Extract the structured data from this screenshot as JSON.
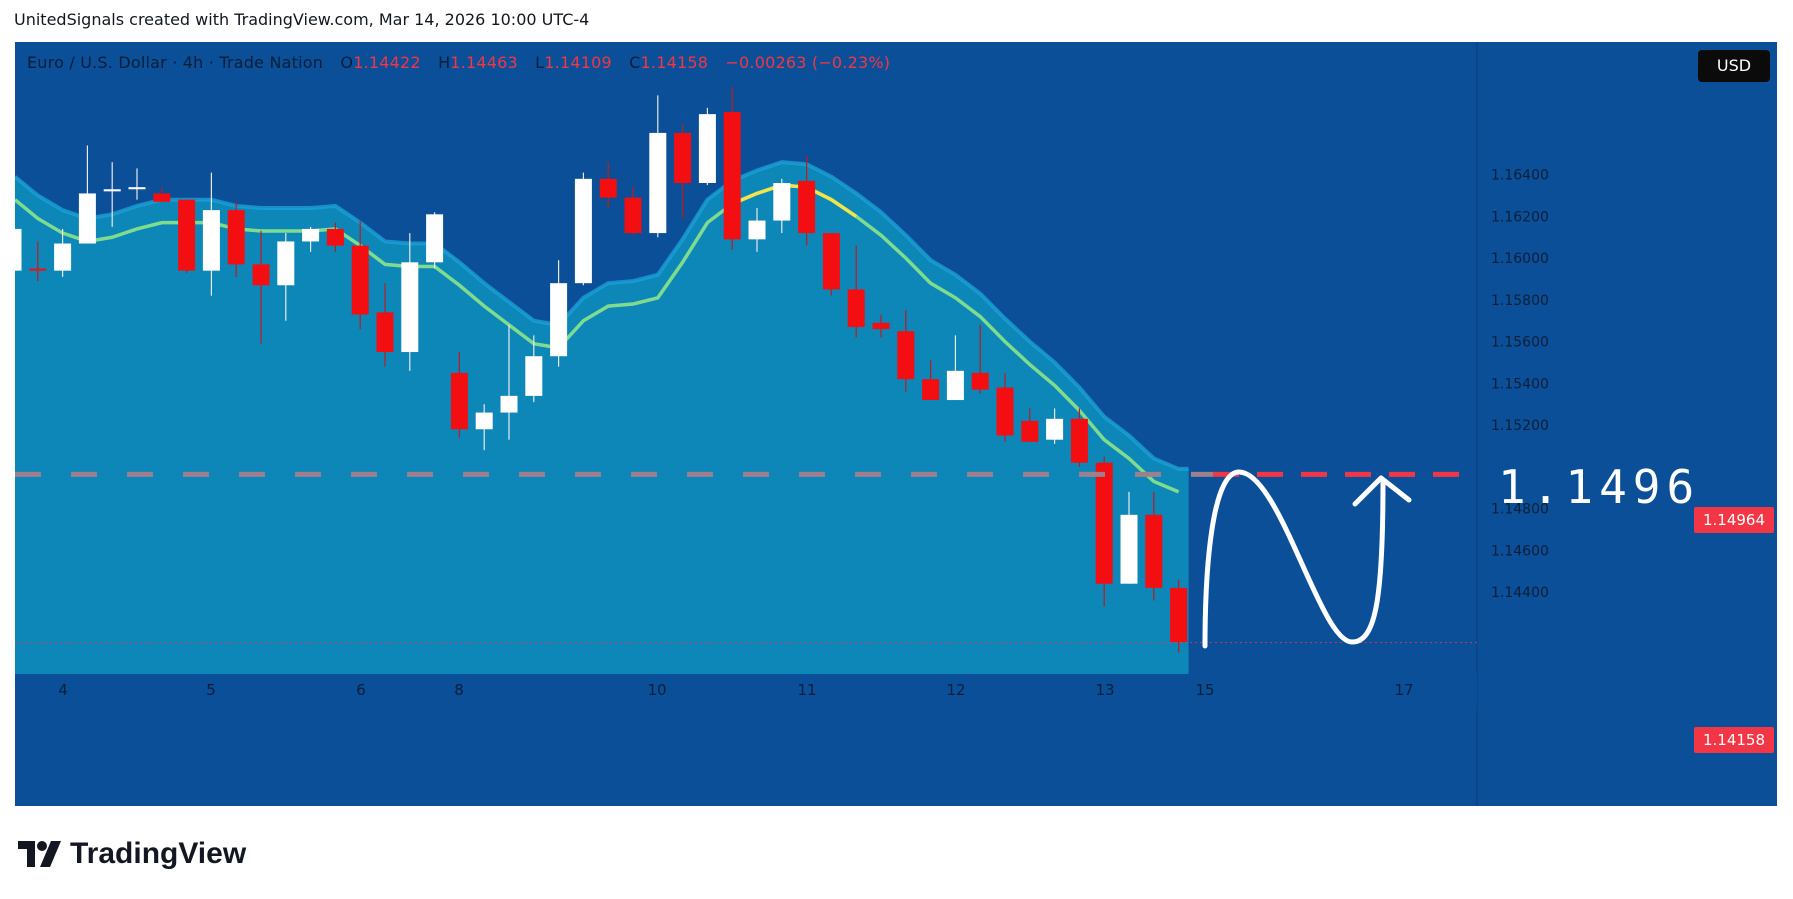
{
  "header": {
    "text": "UnitedSignals created with TradingView.com, Mar 14, 2026 10:00 UTC-4"
  },
  "legend": {
    "symbol": "Euro / U.S. Dollar · 4h · Trade Nation",
    "o_label": "O",
    "o_value": "1.14422",
    "h_label": "H",
    "h_value": "1.14463",
    "l_label": "L",
    "l_value": "1.14109",
    "c_label": "C",
    "c_value": "1.14158",
    "change": "−0.00263 (−0.23%)"
  },
  "currency_button": "USD",
  "price_tags": {
    "target": "1.14964",
    "last": "1.14158"
  },
  "annotation": {
    "target_text": "1.1496"
  },
  "footer": {
    "brand": "TradingView"
  },
  "colors": {
    "background": "#0a4f97",
    "channel_fill": "#0d86b8",
    "channel_edge": "#1aa0d6",
    "ma_line": "#7fdc8f",
    "ma_highlight": "#f2e44b",
    "up_candle": "#ffffff",
    "down_candle": "#f30e12",
    "target_line": "#f23645"
  },
  "chart_data": {
    "type": "candlestick",
    "symbol": "Euro / U.S. Dollar",
    "interval": "4h",
    "y_axis": {
      "range": [
        1.1406,
        1.1682
      ],
      "ticks": [
        "1.16400",
        "1.16200",
        "1.16000",
        "1.15800",
        "1.15600",
        "1.15400",
        "1.15200",
        "1.14800",
        "1.14600",
        "1.14400"
      ]
    },
    "x_axis": {
      "tick_labels": [
        "4",
        "5",
        "6",
        "8",
        "10",
        "11",
        "12",
        "13",
        "15",
        "17"
      ]
    },
    "candles": [
      {
        "o": 1.1594,
        "h": 1.1614,
        "l": 1.1589,
        "c": 1.1614
      },
      {
        "o": 1.1595,
        "h": 1.1608,
        "l": 1.1589,
        "c": 1.1594
      },
      {
        "o": 1.1594,
        "h": 1.1614,
        "l": 1.1591,
        "c": 1.1607
      },
      {
        "o": 1.1607,
        "h": 1.1654,
        "l": 1.1607,
        "c": 1.1631
      },
      {
        "o": 1.1632,
        "h": 1.1646,
        "l": 1.1615,
        "c": 1.1633
      },
      {
        "o": 1.1633,
        "h": 1.1643,
        "l": 1.1628,
        "c": 1.1634
      },
      {
        "o": 1.1631,
        "h": 1.1634,
        "l": 1.1628,
        "c": 1.1627
      },
      {
        "o": 1.1628,
        "h": 1.1628,
        "l": 1.1593,
        "c": 1.1594
      },
      {
        "o": 1.1594,
        "h": 1.1641,
        "l": 1.1582,
        "c": 1.1623
      },
      {
        "o": 1.1623,
        "h": 1.1627,
        "l": 1.1591,
        "c": 1.1597
      },
      {
        "o": 1.1597,
        "h": 1.1613,
        "l": 1.1559,
        "c": 1.1587
      },
      {
        "o": 1.1587,
        "h": 1.1612,
        "l": 1.157,
        "c": 1.1608
      },
      {
        "o": 1.1608,
        "h": 1.1615,
        "l": 1.1603,
        "c": 1.1614
      },
      {
        "o": 1.1614,
        "h": 1.1617,
        "l": 1.1603,
        "c": 1.1606
      },
      {
        "o": 1.1606,
        "h": 1.1618,
        "l": 1.1566,
        "c": 1.1573
      },
      {
        "o": 1.1574,
        "h": 1.1588,
        "l": 1.1548,
        "c": 1.1555
      },
      {
        "o": 1.1555,
        "h": 1.1612,
        "l": 1.1546,
        "c": 1.1598
      },
      {
        "o": 1.1598,
        "h": 1.1622,
        "l": 1.1595,
        "c": 1.1621
      },
      {
        "o": 1.1545,
        "h": 1.1555,
        "l": 1.1514,
        "c": 1.1518
      },
      {
        "o": 1.1518,
        "h": 1.153,
        "l": 1.1508,
        "c": 1.1526
      },
      {
        "o": 1.1526,
        "h": 1.1568,
        "l": 1.1513,
        "c": 1.1534
      },
      {
        "o": 1.1534,
        "h": 1.1563,
        "l": 1.1531,
        "c": 1.1553
      },
      {
        "o": 1.1553,
        "h": 1.1599,
        "l": 1.1548,
        "c": 1.1588
      },
      {
        "o": 1.1588,
        "h": 1.1641,
        "l": 1.1587,
        "c": 1.1638
      },
      {
        "o": 1.1638,
        "h": 1.1646,
        "l": 1.1624,
        "c": 1.1629
      },
      {
        "o": 1.1629,
        "h": 1.1634,
        "l": 1.1611,
        "c": 1.1612
      },
      {
        "o": 1.1612,
        "h": 1.1678,
        "l": 1.161,
        "c": 1.166
      },
      {
        "o": 1.166,
        "h": 1.1664,
        "l": 1.1619,
        "c": 1.1636
      },
      {
        "o": 1.1636,
        "h": 1.1672,
        "l": 1.1635,
        "c": 1.1669
      },
      {
        "o": 1.167,
        "h": 1.1682,
        "l": 1.1604,
        "c": 1.1609
      },
      {
        "o": 1.1609,
        "h": 1.1624,
        "l": 1.1603,
        "c": 1.1618
      },
      {
        "o": 1.1618,
        "h": 1.1638,
        "l": 1.1612,
        "c": 1.1636
      },
      {
        "o": 1.1637,
        "h": 1.1649,
        "l": 1.1606,
        "c": 1.1612
      },
      {
        "o": 1.1612,
        "h": 1.1612,
        "l": 1.1582,
        "c": 1.1585
      },
      {
        "o": 1.1585,
        "h": 1.1606,
        "l": 1.1562,
        "c": 1.1567
      },
      {
        "o": 1.1569,
        "h": 1.1573,
        "l": 1.1562,
        "c": 1.1566
      },
      {
        "o": 1.1565,
        "h": 1.1575,
        "l": 1.1536,
        "c": 1.1542
      },
      {
        "o": 1.1542,
        "h": 1.1551,
        "l": 1.1532,
        "c": 1.1532
      },
      {
        "o": 1.1532,
        "h": 1.1563,
        "l": 1.1532,
        "c": 1.1546
      },
      {
        "o": 1.1545,
        "h": 1.1568,
        "l": 1.1535,
        "c": 1.1537
      },
      {
        "o": 1.1538,
        "h": 1.1545,
        "l": 1.1512,
        "c": 1.1515
      },
      {
        "o": 1.1522,
        "h": 1.1528,
        "l": 1.1512,
        "c": 1.1512
      },
      {
        "o": 1.1513,
        "h": 1.1528,
        "l": 1.1511,
        "c": 1.1523
      },
      {
        "o": 1.1523,
        "h": 1.1528,
        "l": 1.15,
        "c": 1.1502
      },
      {
        "o": 1.1502,
        "h": 1.1505,
        "l": 1.1433,
        "c": 1.1444
      },
      {
        "o": 1.1444,
        "h": 1.1488,
        "l": 1.1444,
        "c": 1.1477
      },
      {
        "o": 1.1477,
        "h": 1.1488,
        "l": 1.1436,
        "c": 1.1442
      },
      {
        "o": 1.1442,
        "h": 1.1446,
        "l": 1.1411,
        "c": 1.1416
      }
    ],
    "moving_average": [
      1.1628,
      1.1619,
      1.1612,
      1.1608,
      1.161,
      1.1614,
      1.1617,
      1.1617,
      1.1617,
      1.1614,
      1.1613,
      1.1613,
      1.1613,
      1.1614,
      1.1606,
      1.1597,
      1.1596,
      1.1596,
      1.1587,
      1.1577,
      1.1568,
      1.1559,
      1.1557,
      1.157,
      1.1577,
      1.1578,
      1.1581,
      1.1598,
      1.1617,
      1.1626,
      1.1631,
      1.1635,
      1.1634,
      1.1628,
      1.162,
      1.1611,
      1.16,
      1.1588,
      1.1581,
      1.1572,
      1.156,
      1.1549,
      1.1539,
      1.1527,
      1.1513,
      1.1504,
      1.1493,
      1.1488
    ],
    "highlight_range": [
      29,
      34
    ],
    "target_level": 1.14964,
    "last_price": 1.14158
  }
}
